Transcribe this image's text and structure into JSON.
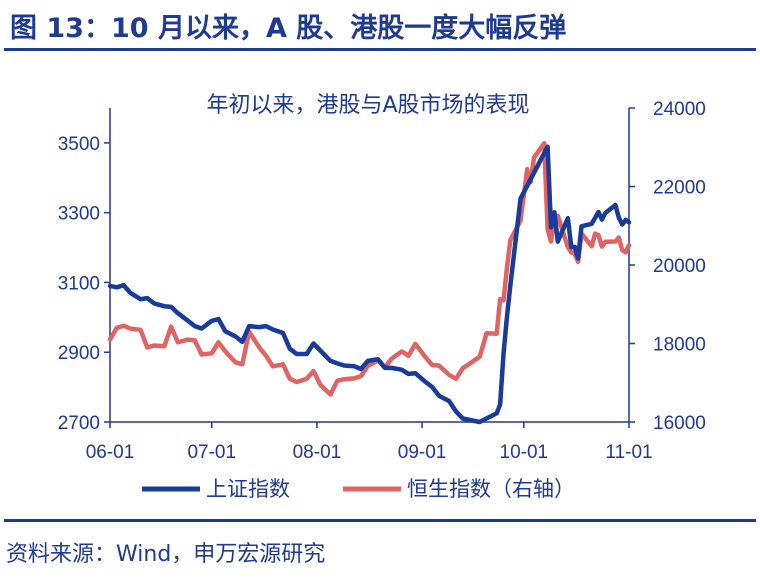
{
  "figure": {
    "title": "图 13：10 月以来，A 股、港股一度大幅反弹",
    "source": "资料来源：Wind，申万宏源研究"
  },
  "chart_data": {
    "type": "line",
    "title": "年初以来，港股与A股市场的表现",
    "x_tick_labels": [
      "06-01",
      "07-01",
      "08-01",
      "09-01",
      "10-01",
      "11-01"
    ],
    "x_range": [
      "2024-06-01",
      "2024-11-01"
    ],
    "y_left": {
      "ticks": [
        2700,
        2900,
        3100,
        3300,
        3500
      ],
      "range": [
        2700,
        3600
      ]
    },
    "y_right": {
      "ticks": [
        16000,
        18000,
        20000,
        22000,
        24000
      ],
      "range": [
        16000,
        24000
      ]
    },
    "legend_position": "bottom",
    "grid": false,
    "series": [
      {
        "name": "上证指数",
        "axis": "left",
        "color": "#1a3a9c",
        "points": [
          [
            "2024-06-01",
            3090
          ],
          [
            "2024-06-03",
            3086
          ],
          [
            "2024-06-05",
            3092
          ],
          [
            "2024-06-07",
            3070
          ],
          [
            "2024-06-10",
            3052
          ],
          [
            "2024-06-12",
            3055
          ],
          [
            "2024-06-14",
            3040
          ],
          [
            "2024-06-17",
            3032
          ],
          [
            "2024-06-19",
            3030
          ],
          [
            "2024-06-21",
            3012
          ],
          [
            "2024-06-24",
            2990
          ],
          [
            "2024-06-26",
            2975
          ],
          [
            "2024-06-28",
            2968
          ],
          [
            "2024-07-01",
            2990
          ],
          [
            "2024-07-03",
            2995
          ],
          [
            "2024-07-05",
            2960
          ],
          [
            "2024-07-08",
            2945
          ],
          [
            "2024-07-10",
            2930
          ],
          [
            "2024-07-12",
            2975
          ],
          [
            "2024-07-15",
            2972
          ],
          [
            "2024-07-17",
            2975
          ],
          [
            "2024-07-19",
            2965
          ],
          [
            "2024-07-22",
            2955
          ],
          [
            "2024-07-24",
            2910
          ],
          [
            "2024-07-26",
            2895
          ],
          [
            "2024-07-29",
            2895
          ],
          [
            "2024-07-31",
            2925
          ],
          [
            "2024-08-02",
            2905
          ],
          [
            "2024-08-05",
            2875
          ],
          [
            "2024-08-07",
            2868
          ],
          [
            "2024-08-09",
            2862
          ],
          [
            "2024-08-12",
            2860
          ],
          [
            "2024-08-14",
            2852
          ],
          [
            "2024-08-16",
            2875
          ],
          [
            "2024-08-19",
            2880
          ],
          [
            "2024-08-21",
            2855
          ],
          [
            "2024-08-23",
            2855
          ],
          [
            "2024-08-26",
            2850
          ],
          [
            "2024-08-28",
            2838
          ],
          [
            "2024-08-30",
            2840
          ],
          [
            "2024-09-02",
            2815
          ],
          [
            "2024-09-04",
            2800
          ],
          [
            "2024-09-06",
            2775
          ],
          [
            "2024-09-09",
            2760
          ],
          [
            "2024-09-11",
            2730
          ],
          [
            "2024-09-13",
            2710
          ],
          [
            "2024-09-18",
            2700
          ],
          [
            "2024-09-20",
            2710
          ],
          [
            "2024-09-23",
            2725
          ],
          [
            "2024-09-24",
            2750
          ],
          [
            "2024-09-25",
            2895
          ],
          [
            "2024-09-26",
            3000
          ],
          [
            "2024-09-27",
            3090
          ],
          [
            "2024-09-30",
            3340
          ],
          [
            "2024-10-08",
            3489
          ],
          [
            "2024-10-09",
            3258
          ],
          [
            "2024-10-10",
            3301
          ],
          [
            "2024-10-11",
            3217
          ],
          [
            "2024-10-14",
            3284
          ],
          [
            "2024-10-15",
            3201
          ],
          [
            "2024-10-16",
            3202
          ],
          [
            "2024-10-17",
            3169
          ],
          [
            "2024-10-18",
            3261
          ],
          [
            "2024-10-21",
            3268
          ],
          [
            "2024-10-22",
            3285
          ],
          [
            "2024-10-23",
            3302
          ],
          [
            "2024-10-24",
            3280
          ],
          [
            "2024-10-25",
            3299
          ],
          [
            "2024-10-28",
            3322
          ],
          [
            "2024-10-29",
            3286
          ],
          [
            "2024-10-30",
            3266
          ],
          [
            "2024-10-31",
            3279
          ],
          [
            "2024-11-01",
            3272
          ]
        ]
      },
      {
        "name": "恒生指数（右轴）",
        "axis": "right",
        "color": "#e06464",
        "points": [
          [
            "2024-06-01",
            18100
          ],
          [
            "2024-06-03",
            18400
          ],
          [
            "2024-06-05",
            18450
          ],
          [
            "2024-06-07",
            18380
          ],
          [
            "2024-06-10",
            18350
          ],
          [
            "2024-06-12",
            17900
          ],
          [
            "2024-06-14",
            17950
          ],
          [
            "2024-06-17",
            17930
          ],
          [
            "2024-06-19",
            18430
          ],
          [
            "2024-06-21",
            18030
          ],
          [
            "2024-06-24",
            18100
          ],
          [
            "2024-06-26",
            18080
          ],
          [
            "2024-06-28",
            17720
          ],
          [
            "2024-07-01",
            17750
          ],
          [
            "2024-07-03",
            18030
          ],
          [
            "2024-07-05",
            17800
          ],
          [
            "2024-07-08",
            17520
          ],
          [
            "2024-07-10",
            17470
          ],
          [
            "2024-07-12",
            18300
          ],
          [
            "2024-07-15",
            17900
          ],
          [
            "2024-07-17",
            17690
          ],
          [
            "2024-07-19",
            17420
          ],
          [
            "2024-07-22",
            17470
          ],
          [
            "2024-07-24",
            17100
          ],
          [
            "2024-07-26",
            17020
          ],
          [
            "2024-07-29",
            17100
          ],
          [
            "2024-07-31",
            17300
          ],
          [
            "2024-08-02",
            16950
          ],
          [
            "2024-08-05",
            16700
          ],
          [
            "2024-08-07",
            17050
          ],
          [
            "2024-08-09",
            17090
          ],
          [
            "2024-08-12",
            17110
          ],
          [
            "2024-08-14",
            17170
          ],
          [
            "2024-08-16",
            17430
          ],
          [
            "2024-08-19",
            17570
          ],
          [
            "2024-08-21",
            17390
          ],
          [
            "2024-08-23",
            17610
          ],
          [
            "2024-08-26",
            17800
          ],
          [
            "2024-08-28",
            17690
          ],
          [
            "2024-08-30",
            17990
          ],
          [
            "2024-09-02",
            17650
          ],
          [
            "2024-09-04",
            17450
          ],
          [
            "2024-09-06",
            17440
          ],
          [
            "2024-09-09",
            17200
          ],
          [
            "2024-09-11",
            17100
          ],
          [
            "2024-09-13",
            17370
          ],
          [
            "2024-09-18",
            17660
          ],
          [
            "2024-09-20",
            18260
          ],
          [
            "2024-09-23",
            18250
          ],
          [
            "2024-09-24",
            19130
          ],
          [
            "2024-09-25",
            19100
          ],
          [
            "2024-09-26",
            19920
          ],
          [
            "2024-09-27",
            20630
          ],
          [
            "2024-09-30",
            21130
          ],
          [
            "2024-10-02",
            22440
          ],
          [
            "2024-10-03",
            22110
          ],
          [
            "2024-10-04",
            22740
          ],
          [
            "2024-10-07",
            23100
          ],
          [
            "2024-10-08",
            20920
          ],
          [
            "2024-10-09",
            20600
          ],
          [
            "2024-10-10",
            21250
          ],
          [
            "2024-10-11",
            21250
          ],
          [
            "2024-10-14",
            20450
          ],
          [
            "2024-10-15",
            20320
          ],
          [
            "2024-10-16",
            20290
          ],
          [
            "2024-10-17",
            20080
          ],
          [
            "2024-10-18",
            20800
          ],
          [
            "2024-10-21",
            20480
          ],
          [
            "2024-10-22",
            20800
          ],
          [
            "2024-10-23",
            20760
          ],
          [
            "2024-10-24",
            20470
          ],
          [
            "2024-10-25",
            20590
          ],
          [
            "2024-10-28",
            20600
          ],
          [
            "2024-10-29",
            20700
          ],
          [
            "2024-10-30",
            20380
          ],
          [
            "2024-10-31",
            20320
          ],
          [
            "2024-11-01",
            20510
          ]
        ]
      }
    ]
  }
}
